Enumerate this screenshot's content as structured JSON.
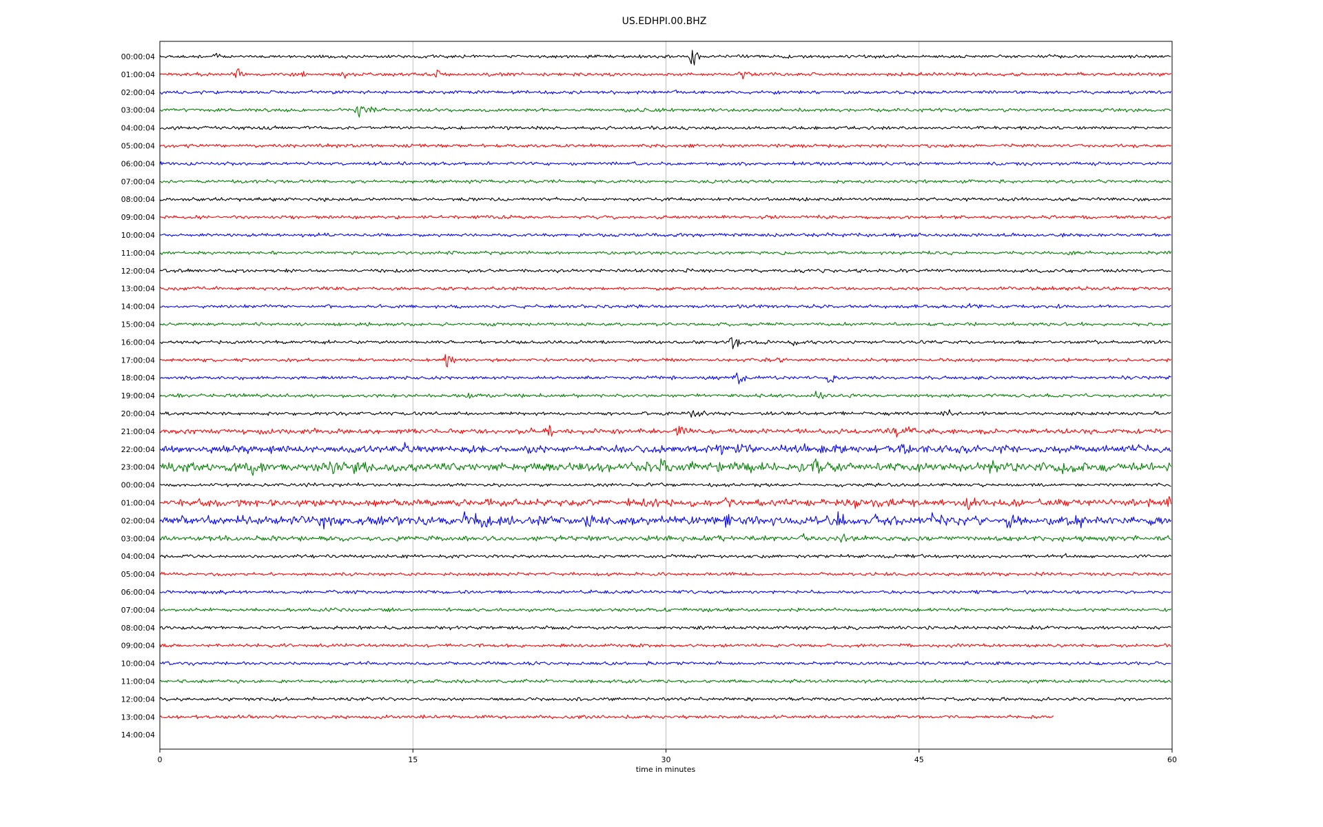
{
  "chart_data": {
    "type": "line",
    "title": "US.EDHPI.00.BHZ",
    "xlabel": "time in minutes",
    "ylabel": "",
    "xlim": [
      0,
      60
    ],
    "x_ticks": [
      0,
      15,
      30,
      45,
      60
    ],
    "x_tick_labels": [
      "0",
      "15",
      "30",
      "45",
      "60"
    ],
    "grid": "vertical lines at x ticks",
    "color_cycle": [
      "#000000",
      "#ff0000",
      "#0000ff",
      "#008000"
    ],
    "rows": [
      {
        "label": "00:00:04",
        "end_minute": 60,
        "activity": "low",
        "bursts": [
          {
            "t": 3.4,
            "amp": 0.35
          },
          {
            "t": 31.6,
            "amp": 1.0
          }
        ]
      },
      {
        "label": "01:00:04",
        "end_minute": 60,
        "activity": "low",
        "bursts": [
          {
            "t": 4.6,
            "amp": 0.8
          },
          {
            "t": 8.5,
            "amp": 0.35
          },
          {
            "t": 11.0,
            "amp": 0.4
          },
          {
            "t": 16.5,
            "amp": 0.6
          },
          {
            "t": 34.5,
            "amp": 0.5
          }
        ]
      },
      {
        "label": "02:00:04",
        "end_minute": 60,
        "activity": "low",
        "bursts": []
      },
      {
        "label": "03:00:04",
        "end_minute": 60,
        "activity": "low",
        "bursts": [
          {
            "t": 11.8,
            "amp": 0.8
          },
          {
            "t": 12.5,
            "amp": 0.4
          }
        ]
      },
      {
        "label": "04:00:04",
        "end_minute": 60,
        "activity": "low",
        "bursts": []
      },
      {
        "label": "05:00:04",
        "end_minute": 60,
        "activity": "low",
        "bursts": []
      },
      {
        "label": "06:00:04",
        "end_minute": 60,
        "activity": "low",
        "bursts": []
      },
      {
        "label": "07:00:04",
        "end_minute": 60,
        "activity": "low",
        "bursts": []
      },
      {
        "label": "08:00:04",
        "end_minute": 60,
        "activity": "low",
        "bursts": []
      },
      {
        "label": "09:00:04",
        "end_minute": 60,
        "activity": "low",
        "bursts": []
      },
      {
        "label": "10:00:04",
        "end_minute": 60,
        "activity": "low",
        "bursts": []
      },
      {
        "label": "11:00:04",
        "end_minute": 60,
        "activity": "low",
        "bursts": []
      },
      {
        "label": "12:00:04",
        "end_minute": 60,
        "activity": "low",
        "bursts": []
      },
      {
        "label": "13:00:04",
        "end_minute": 60,
        "activity": "low",
        "bursts": []
      },
      {
        "label": "14:00:04",
        "end_minute": 60,
        "activity": "low",
        "bursts": [
          {
            "t": 47.7,
            "amp": 0.3
          }
        ]
      },
      {
        "label": "15:00:04",
        "end_minute": 60,
        "activity": "low",
        "bursts": []
      },
      {
        "label": "16:00:04",
        "end_minute": 60,
        "activity": "low",
        "bursts": [
          {
            "t": 34.0,
            "amp": 0.8
          },
          {
            "t": 37.5,
            "amp": 0.7
          }
        ]
      },
      {
        "label": "17:00:04",
        "end_minute": 60,
        "activity": "low",
        "bursts": [
          {
            "t": 17.0,
            "amp": 0.9
          },
          {
            "t": 36.7,
            "amp": 0.4
          }
        ]
      },
      {
        "label": "18:00:04",
        "end_minute": 60,
        "activity": "low",
        "bursts": [
          {
            "t": 34.3,
            "amp": 0.8
          },
          {
            "t": 39.7,
            "amp": 0.6
          }
        ]
      },
      {
        "label": "19:00:04",
        "end_minute": 60,
        "activity": "low",
        "bursts": [
          {
            "t": 18.3,
            "amp": 0.4
          },
          {
            "t": 39.0,
            "amp": 0.6
          }
        ]
      },
      {
        "label": "20:00:04",
        "end_minute": 60,
        "activity": "low",
        "bursts": [
          {
            "t": 31.6,
            "amp": 0.9
          },
          {
            "t": 46.6,
            "amp": 0.5
          }
        ]
      },
      {
        "label": "21:00:04",
        "end_minute": 60,
        "activity": "medium",
        "bursts": [
          {
            "t": 22.0,
            "amp": 0.3
          },
          {
            "t": 23.1,
            "amp": 0.9
          },
          {
            "t": 30.8,
            "amp": 0.8
          },
          {
            "t": 43.5,
            "amp": 0.9
          },
          {
            "t": 44.2,
            "amp": 0.7
          }
        ]
      },
      {
        "label": "22:00:04",
        "end_minute": 60,
        "activity": "high",
        "bursts": [
          {
            "t": 14.5,
            "amp": 0.5
          },
          {
            "t": 33.2,
            "amp": 0.9
          },
          {
            "t": 34.6,
            "amp": 0.9
          },
          {
            "t": 38.0,
            "amp": 0.7
          },
          {
            "t": 40.2,
            "amp": 0.6
          },
          {
            "t": 44.0,
            "amp": 0.8
          },
          {
            "t": 47.6,
            "amp": 0.6
          }
        ]
      },
      {
        "label": "23:00:04",
        "end_minute": 60,
        "activity": "very-high",
        "bursts": [
          {
            "t": 5.5,
            "amp": 1.0
          },
          {
            "t": 10.2,
            "amp": 0.8
          },
          {
            "t": 11.7,
            "amp": 0.8
          },
          {
            "t": 13.9,
            "amp": 0.5
          },
          {
            "t": 27.3,
            "amp": 0.6
          },
          {
            "t": 29.9,
            "amp": 0.9
          },
          {
            "t": 31.5,
            "amp": 0.7
          },
          {
            "t": 33.2,
            "amp": 1.0
          },
          {
            "t": 34.6,
            "amp": 0.7
          },
          {
            "t": 37.9,
            "amp": 0.8
          },
          {
            "t": 38.9,
            "amp": 0.8
          },
          {
            "t": 49.2,
            "amp": 0.7
          },
          {
            "t": 53.5,
            "amp": 0.6
          },
          {
            "t": 59.8,
            "amp": 0.6
          }
        ]
      },
      {
        "label": "00:00:04",
        "end_minute": 60,
        "activity": "low",
        "bursts": []
      },
      {
        "label": "01:00:04",
        "end_minute": 60,
        "activity": "high",
        "bursts": [
          {
            "t": 31.5,
            "amp": 0.6
          },
          {
            "t": 33.5,
            "amp": 0.6
          },
          {
            "t": 41.3,
            "amp": 0.5
          },
          {
            "t": 47.9,
            "amp": 0.8
          },
          {
            "t": 50.5,
            "amp": 0.6
          },
          {
            "t": 58.7,
            "amp": 0.7
          },
          {
            "t": 59.8,
            "amp": 0.8
          }
        ]
      },
      {
        "label": "02:00:04",
        "end_minute": 60,
        "activity": "very-high",
        "bursts": [
          {
            "t": 4.5,
            "amp": 0.6
          },
          {
            "t": 9.7,
            "amp": 1.0
          },
          {
            "t": 12.5,
            "amp": 0.6
          },
          {
            "t": 14.0,
            "amp": 0.6
          },
          {
            "t": 18.1,
            "amp": 1.0
          },
          {
            "t": 18.8,
            "amp": 1.0
          },
          {
            "t": 19.4,
            "amp": 0.8
          },
          {
            "t": 25.4,
            "amp": 0.9
          },
          {
            "t": 31.5,
            "amp": 0.6
          },
          {
            "t": 33.7,
            "amp": 0.7
          },
          {
            "t": 40.2,
            "amp": 0.8
          },
          {
            "t": 42.4,
            "amp": 0.8
          },
          {
            "t": 45.8,
            "amp": 0.6
          },
          {
            "t": 50.3,
            "amp": 0.9
          },
          {
            "t": 54.6,
            "amp": 0.9
          }
        ]
      },
      {
        "label": "03:00:04",
        "end_minute": 60,
        "activity": "medium",
        "bursts": [
          {
            "t": 38.1,
            "amp": 0.5
          },
          {
            "t": 40.4,
            "amp": 0.8
          },
          {
            "t": 41.6,
            "amp": 0.5
          }
        ]
      },
      {
        "label": "04:00:04",
        "end_minute": 60,
        "activity": "low",
        "bursts": [
          {
            "t": 53.7,
            "amp": 0.4
          }
        ]
      },
      {
        "label": "05:00:04",
        "end_minute": 60,
        "activity": "low",
        "bursts": []
      },
      {
        "label": "06:00:04",
        "end_minute": 60,
        "activity": "low",
        "bursts": []
      },
      {
        "label": "07:00:04",
        "end_minute": 60,
        "activity": "low",
        "bursts": []
      },
      {
        "label": "08:00:04",
        "end_minute": 60,
        "activity": "low",
        "bursts": []
      },
      {
        "label": "09:00:04",
        "end_minute": 60,
        "activity": "low",
        "bursts": []
      },
      {
        "label": "10:00:04",
        "end_minute": 60,
        "activity": "low",
        "bursts": []
      },
      {
        "label": "11:00:04",
        "end_minute": 60,
        "activity": "low",
        "bursts": []
      },
      {
        "label": "12:00:04",
        "end_minute": 60,
        "activity": "low",
        "bursts": []
      },
      {
        "label": "13:00:04",
        "end_minute": 53,
        "activity": "low",
        "bursts": []
      },
      {
        "label": "14:00:04",
        "end_minute": 0,
        "activity": "none",
        "bursts": []
      }
    ]
  }
}
